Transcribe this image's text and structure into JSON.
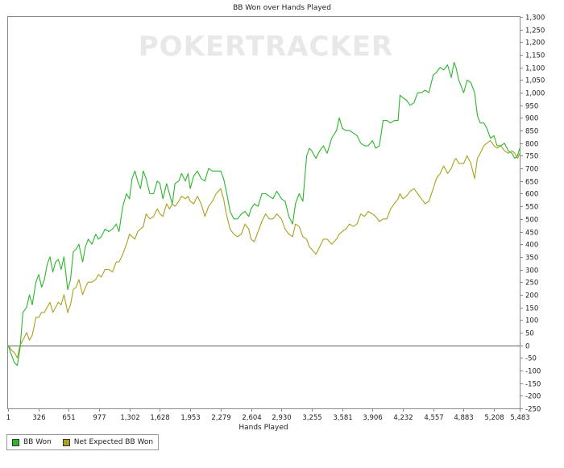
{
  "chart_data": {
    "type": "line",
    "title": "BB Won over Hands Played",
    "xlabel": "Hands Played",
    "ylabel": "",
    "watermark": "POKERTRACKER",
    "xlim": [
      1,
      5483
    ],
    "ylim": [
      -250,
      1300
    ],
    "x_ticks": [
      1,
      326,
      651,
      977,
      1302,
      1628,
      1953,
      2279,
      2604,
      2930,
      3255,
      3581,
      3906,
      4232,
      4557,
      4883,
      5208,
      5483
    ],
    "x_tick_labels": [
      "1",
      "326",
      "651",
      "977",
      "1,302",
      "1,628",
      "1,953",
      "2,279",
      "2,604",
      "2,930",
      "3,255",
      "3,581",
      "3,906",
      "4,232",
      "4,557",
      "4,883",
      "5,208",
      "5,483"
    ],
    "y_ticks": [
      -250,
      -200,
      -150,
      -100,
      -50,
      0,
      50,
      100,
      150,
      200,
      250,
      300,
      350,
      400,
      450,
      500,
      550,
      600,
      650,
      700,
      750,
      800,
      850,
      900,
      950,
      1000,
      1050,
      1100,
      1150,
      1200,
      1250,
      1300
    ],
    "y_tick_labels": [
      "-250",
      "-200",
      "-150",
      "-100",
      "-50",
      "0",
      "50",
      "100",
      "150",
      "200",
      "250",
      "300",
      "350",
      "400",
      "450",
      "500",
      "550",
      "600",
      "650",
      "700",
      "750",
      "800",
      "850",
      "900",
      "950",
      "1,000",
      "1,050",
      "1,100",
      "1,150",
      "1,200",
      "1,250",
      "1,300"
    ],
    "legend_position": "bottom-left",
    "series": [
      {
        "name": "BB Won",
        "color": "#2db52d",
        "points": [
          [
            1,
            0
          ],
          [
            40,
            -40
          ],
          [
            70,
            -70
          ],
          [
            100,
            -80
          ],
          [
            130,
            -10
          ],
          [
            160,
            130
          ],
          [
            200,
            150
          ],
          [
            230,
            200
          ],
          [
            260,
            160
          ],
          [
            300,
            250
          ],
          [
            330,
            280
          ],
          [
            360,
            230
          ],
          [
            390,
            260
          ],
          [
            420,
            320
          ],
          [
            450,
            350
          ],
          [
            480,
            290
          ],
          [
            510,
            330
          ],
          [
            540,
            340
          ],
          [
            570,
            300
          ],
          [
            600,
            350
          ],
          [
            640,
            220
          ],
          [
            670,
            260
          ],
          [
            700,
            370
          ],
          [
            730,
            380
          ],
          [
            760,
            400
          ],
          [
            800,
            330
          ],
          [
            830,
            390
          ],
          [
            860,
            420
          ],
          [
            900,
            400
          ],
          [
            940,
            440
          ],
          [
            970,
            420
          ],
          [
            1000,
            430
          ],
          [
            1040,
            460
          ],
          [
            1080,
            450
          ],
          [
            1120,
            460
          ],
          [
            1160,
            480
          ],
          [
            1190,
            450
          ],
          [
            1230,
            550
          ],
          [
            1270,
            600
          ],
          [
            1302,
            580
          ],
          [
            1330,
            660
          ],
          [
            1360,
            690
          ],
          [
            1390,
            650
          ],
          [
            1420,
            620
          ],
          [
            1450,
            690
          ],
          [
            1480,
            660
          ],
          [
            1520,
            600
          ],
          [
            1560,
            600
          ],
          [
            1600,
            650
          ],
          [
            1628,
            640
          ],
          [
            1660,
            580
          ],
          [
            1700,
            640
          ],
          [
            1730,
            600
          ],
          [
            1760,
            560
          ],
          [
            1790,
            640
          ],
          [
            1830,
            650
          ],
          [
            1860,
            680
          ],
          [
            1900,
            650
          ],
          [
            1930,
            680
          ],
          [
            1953,
            620
          ],
          [
            1990,
            670
          ],
          [
            2030,
            690
          ],
          [
            2070,
            660
          ],
          [
            2110,
            650
          ],
          [
            2150,
            700
          ],
          [
            2190,
            690
          ],
          [
            2230,
            690
          ],
          [
            2279,
            690
          ],
          [
            2310,
            660
          ],
          [
            2340,
            610
          ],
          [
            2380,
            530
          ],
          [
            2420,
            500
          ],
          [
            2460,
            500
          ],
          [
            2500,
            520
          ],
          [
            2540,
            530
          ],
          [
            2580,
            510
          ],
          [
            2604,
            540
          ],
          [
            2640,
            560
          ],
          [
            2680,
            550
          ],
          [
            2720,
            600
          ],
          [
            2760,
            600
          ],
          [
            2800,
            590
          ],
          [
            2840,
            580
          ],
          [
            2880,
            610
          ],
          [
            2930,
            580
          ],
          [
            2970,
            570
          ],
          [
            3010,
            510
          ],
          [
            3050,
            480
          ],
          [
            3080,
            560
          ],
          [
            3120,
            600
          ],
          [
            3160,
            570
          ],
          [
            3200,
            750
          ],
          [
            3230,
            780
          ],
          [
            3255,
            770
          ],
          [
            3300,
            740
          ],
          [
            3340,
            770
          ],
          [
            3380,
            790
          ],
          [
            3420,
            760
          ],
          [
            3470,
            820
          ],
          [
            3520,
            850
          ],
          [
            3550,
            900
          ],
          [
            3581,
            860
          ],
          [
            3620,
            850
          ],
          [
            3660,
            850
          ],
          [
            3700,
            840
          ],
          [
            3740,
            830
          ],
          [
            3780,
            800
          ],
          [
            3820,
            790
          ],
          [
            3860,
            790
          ],
          [
            3906,
            810
          ],
          [
            3940,
            780
          ],
          [
            3980,
            790
          ],
          [
            4020,
            890
          ],
          [
            4060,
            890
          ],
          [
            4100,
            880
          ],
          [
            4140,
            890
          ],
          [
            4180,
            890
          ],
          [
            4200,
            990
          ],
          [
            4232,
            980
          ],
          [
            4270,
            970
          ],
          [
            4310,
            950
          ],
          [
            4350,
            960
          ],
          [
            4390,
            1000
          ],
          [
            4430,
            1000
          ],
          [
            4470,
            1010
          ],
          [
            4510,
            1000
          ],
          [
            4557,
            1070
          ],
          [
            4590,
            1080
          ],
          [
            4630,
            1100
          ],
          [
            4670,
            1090
          ],
          [
            4710,
            1110
          ],
          [
            4750,
            1060
          ],
          [
            4780,
            1120
          ],
          [
            4800,
            1100
          ],
          [
            4830,
            1050
          ],
          [
            4883,
            1000
          ],
          [
            4920,
            1050
          ],
          [
            4960,
            1040
          ],
          [
            5000,
            1000
          ],
          [
            5030,
            910
          ],
          [
            5060,
            880
          ],
          [
            5100,
            880
          ],
          [
            5130,
            860
          ],
          [
            5170,
            820
          ],
          [
            5208,
            830
          ],
          [
            5240,
            790
          ],
          [
            5280,
            790
          ],
          [
            5320,
            800
          ],
          [
            5360,
            770
          ],
          [
            5400,
            760
          ],
          [
            5430,
            740
          ],
          [
            5460,
            750
          ],
          [
            5483,
            780
          ]
        ]
      },
      {
        "name": "Net Expected BB Won",
        "color": "#a9a01e",
        "points": [
          [
            1,
            0
          ],
          [
            40,
            -20
          ],
          [
            70,
            -30
          ],
          [
            100,
            -50
          ],
          [
            130,
            0
          ],
          [
            160,
            20
          ],
          [
            200,
            50
          ],
          [
            230,
            20
          ],
          [
            260,
            40
          ],
          [
            300,
            110
          ],
          [
            330,
            110
          ],
          [
            360,
            130
          ],
          [
            390,
            130
          ],
          [
            420,
            150
          ],
          [
            450,
            170
          ],
          [
            480,
            130
          ],
          [
            510,
            150
          ],
          [
            540,
            170
          ],
          [
            570,
            160
          ],
          [
            600,
            200
          ],
          [
            640,
            130
          ],
          [
            670,
            160
          ],
          [
            700,
            220
          ],
          [
            730,
            230
          ],
          [
            760,
            260
          ],
          [
            800,
            200
          ],
          [
            830,
            230
          ],
          [
            860,
            250
          ],
          [
            900,
            250
          ],
          [
            940,
            260
          ],
          [
            970,
            280
          ],
          [
            1000,
            270
          ],
          [
            1040,
            300
          ],
          [
            1080,
            300
          ],
          [
            1120,
            290
          ],
          [
            1160,
            330
          ],
          [
            1190,
            330
          ],
          [
            1230,
            360
          ],
          [
            1270,
            400
          ],
          [
            1302,
            440
          ],
          [
            1330,
            430
          ],
          [
            1360,
            420
          ],
          [
            1390,
            450
          ],
          [
            1420,
            460
          ],
          [
            1450,
            470
          ],
          [
            1480,
            520
          ],
          [
            1520,
            500
          ],
          [
            1560,
            510
          ],
          [
            1600,
            540
          ],
          [
            1628,
            520
          ],
          [
            1660,
            510
          ],
          [
            1700,
            560
          ],
          [
            1730,
            540
          ],
          [
            1760,
            560
          ],
          [
            1790,
            550
          ],
          [
            1830,
            570
          ],
          [
            1860,
            590
          ],
          [
            1900,
            580
          ],
          [
            1930,
            590
          ],
          [
            1953,
            570
          ],
          [
            1990,
            560
          ],
          [
            2030,
            590
          ],
          [
            2070,
            560
          ],
          [
            2110,
            510
          ],
          [
            2150,
            550
          ],
          [
            2190,
            570
          ],
          [
            2230,
            600
          ],
          [
            2279,
            620
          ],
          [
            2310,
            580
          ],
          [
            2340,
            520
          ],
          [
            2380,
            460
          ],
          [
            2420,
            440
          ],
          [
            2460,
            430
          ],
          [
            2500,
            440
          ],
          [
            2540,
            480
          ],
          [
            2580,
            460
          ],
          [
            2604,
            420
          ],
          [
            2640,
            410
          ],
          [
            2680,
            450
          ],
          [
            2720,
            490
          ],
          [
            2760,
            520
          ],
          [
            2800,
            500
          ],
          [
            2840,
            500
          ],
          [
            2880,
            520
          ],
          [
            2930,
            500
          ],
          [
            2970,
            460
          ],
          [
            3010,
            440
          ],
          [
            3050,
            430
          ],
          [
            3080,
            480
          ],
          [
            3120,
            470
          ],
          [
            3160,
            430
          ],
          [
            3200,
            420
          ],
          [
            3230,
            390
          ],
          [
            3255,
            380
          ],
          [
            3300,
            360
          ],
          [
            3340,
            390
          ],
          [
            3380,
            420
          ],
          [
            3420,
            420
          ],
          [
            3470,
            400
          ],
          [
            3520,
            420
          ],
          [
            3550,
            440
          ],
          [
            3581,
            450
          ],
          [
            3620,
            460
          ],
          [
            3660,
            480
          ],
          [
            3700,
            470
          ],
          [
            3740,
            480
          ],
          [
            3780,
            520
          ],
          [
            3820,
            510
          ],
          [
            3860,
            530
          ],
          [
            3906,
            520
          ],
          [
            3940,
            510
          ],
          [
            3980,
            490
          ],
          [
            4020,
            500
          ],
          [
            4060,
            500
          ],
          [
            4100,
            540
          ],
          [
            4140,
            560
          ],
          [
            4180,
            580
          ],
          [
            4200,
            600
          ],
          [
            4232,
            580
          ],
          [
            4270,
            590
          ],
          [
            4310,
            610
          ],
          [
            4350,
            620
          ],
          [
            4390,
            600
          ],
          [
            4430,
            580
          ],
          [
            4470,
            560
          ],
          [
            4510,
            570
          ],
          [
            4557,
            620
          ],
          [
            4590,
            660
          ],
          [
            4630,
            680
          ],
          [
            4670,
            710
          ],
          [
            4710,
            680
          ],
          [
            4750,
            700
          ],
          [
            4780,
            730
          ],
          [
            4800,
            740
          ],
          [
            4830,
            720
          ],
          [
            4883,
            720
          ],
          [
            4920,
            750
          ],
          [
            4960,
            720
          ],
          [
            5000,
            660
          ],
          [
            5030,
            740
          ],
          [
            5060,
            760
          ],
          [
            5100,
            790
          ],
          [
            5130,
            800
          ],
          [
            5170,
            810
          ],
          [
            5208,
            790
          ],
          [
            5240,
            780
          ],
          [
            5280,
            790
          ],
          [
            5320,
            770
          ],
          [
            5360,
            760
          ],
          [
            5400,
            770
          ],
          [
            5430,
            760
          ],
          [
            5460,
            740
          ],
          [
            5483,
            760
          ]
        ]
      }
    ]
  }
}
